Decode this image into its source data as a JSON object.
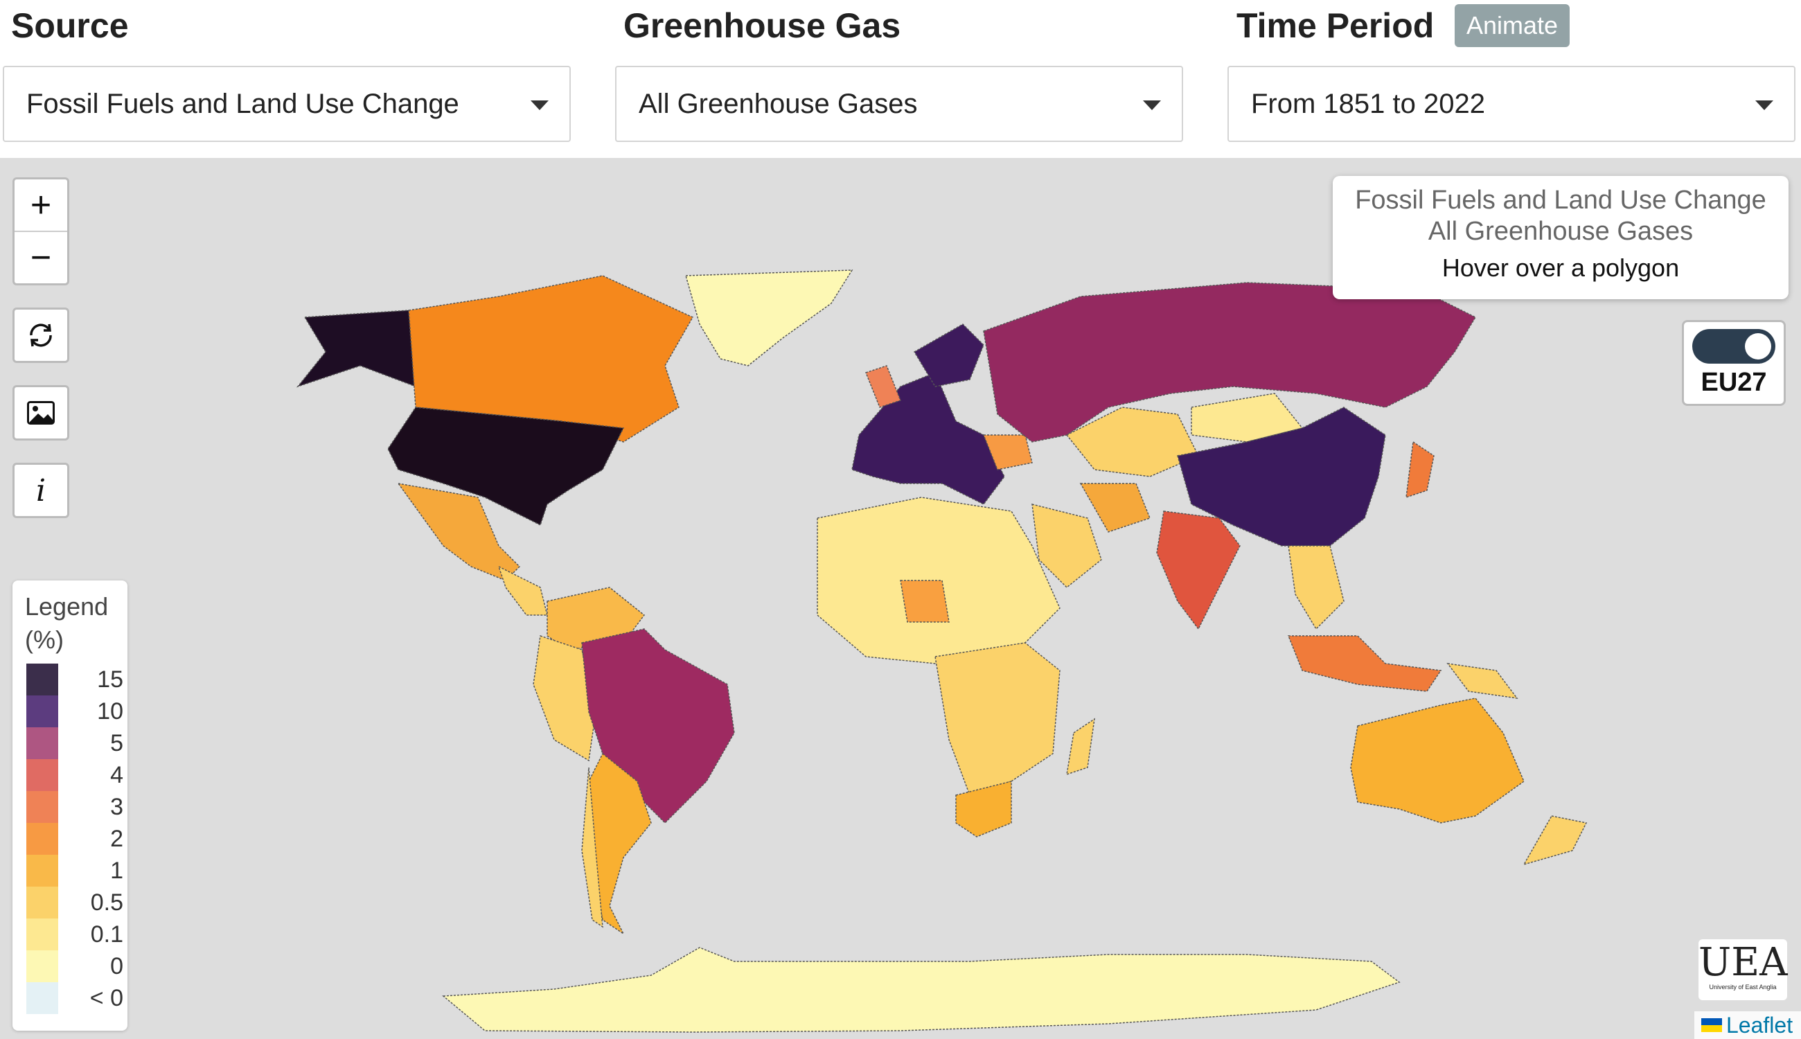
{
  "controls": {
    "source": {
      "label": "Source",
      "value": "Fossil Fuels and Land Use Change"
    },
    "gas": {
      "label": "Greenhouse Gas",
      "value": "All Greenhouse Gases"
    },
    "period": {
      "label": "Time Period",
      "value": "From 1851 to 2022",
      "animate_label": "Animate"
    }
  },
  "map_controls": {
    "zoom_in": "+",
    "zoom_out": "−",
    "icons": [
      "reset-icon",
      "image-icon",
      "info-icon"
    ],
    "info_glyph": "i"
  },
  "info_box": {
    "line1": "Fossil Fuels and Land Use Change",
    "line2": "All Greenhouse Gases",
    "line3": "Hover over a polygon"
  },
  "toggle": {
    "label": "EU27",
    "on": true
  },
  "legend": {
    "title_line1": "Legend",
    "title_line2": "(%)",
    "items": [
      {
        "label": "15",
        "color": "#3b2e4b"
      },
      {
        "label": "10",
        "color": "#5c3c7f"
      },
      {
        "label": "5",
        "color": "#ae5682"
      },
      {
        "label": "4",
        "color": "#e06b63"
      },
      {
        "label": "3",
        "color": "#ef8256"
      },
      {
        "label": "2",
        "color": "#f79a43"
      },
      {
        "label": "1",
        "color": "#f9b949"
      },
      {
        "label": "0.5",
        "color": "#fbd26a"
      },
      {
        "label": "0.1",
        "color": "#fde891"
      },
      {
        "label": "0",
        "color": "#fdf8b4"
      },
      {
        "label": "< 0",
        "color": "#e4f1f5"
      }
    ]
  },
  "logo": {
    "text": "UEA",
    "subtext": "University of East Anglia"
  },
  "attribution": "Leaflet"
}
